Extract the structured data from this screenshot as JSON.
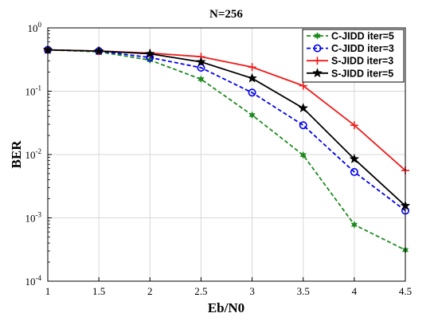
{
  "chart_data": {
    "type": "line",
    "title": "N=256",
    "xlabel": "Eb/N0",
    "ylabel": "BER",
    "yscale": "log",
    "xlim": [
      1,
      4.5
    ],
    "ylim": [
      0.0001,
      1
    ],
    "x_ticks": [
      "1",
      "1.5",
      "2",
      "2.5",
      "3",
      "3.5",
      "4",
      "4.5"
    ],
    "y_tick_exponents": [
      "-4",
      "-3",
      "-2",
      "-1",
      "0"
    ],
    "y_tick_base": "10",
    "grid": true,
    "legend_position": "top-right",
    "x": [
      1,
      1.5,
      2,
      2.5,
      3,
      3.5,
      4,
      4.5
    ],
    "series": [
      {
        "name": "C-JIDD iter=5",
        "color": "#1e8a1e",
        "dash": "dashed",
        "marker": "star6",
        "values": [
          0.45,
          0.42,
          0.31,
          0.155,
          0.042,
          0.0098,
          0.00078,
          0.00031
        ]
      },
      {
        "name": "C-JIDD iter=3",
        "color": "#0000ee",
        "dash": "dashed",
        "marker": "circle",
        "values": [
          0.45,
          0.43,
          0.34,
          0.235,
          0.095,
          0.029,
          0.0053,
          0.0013
        ]
      },
      {
        "name": "S-JIDD iter=3",
        "color": "#ee1c1c",
        "dash": "solid",
        "marker": "plus",
        "values": [
          0.45,
          0.43,
          0.4,
          0.35,
          0.24,
          0.122,
          0.029,
          0.0056
        ]
      },
      {
        "name": "S-JIDD iter=5",
        "color": "#000000",
        "dash": "solid",
        "marker": "star5",
        "values": [
          0.45,
          0.43,
          0.39,
          0.29,
          0.16,
          0.054,
          0.0085,
          0.00155
        ]
      }
    ]
  }
}
